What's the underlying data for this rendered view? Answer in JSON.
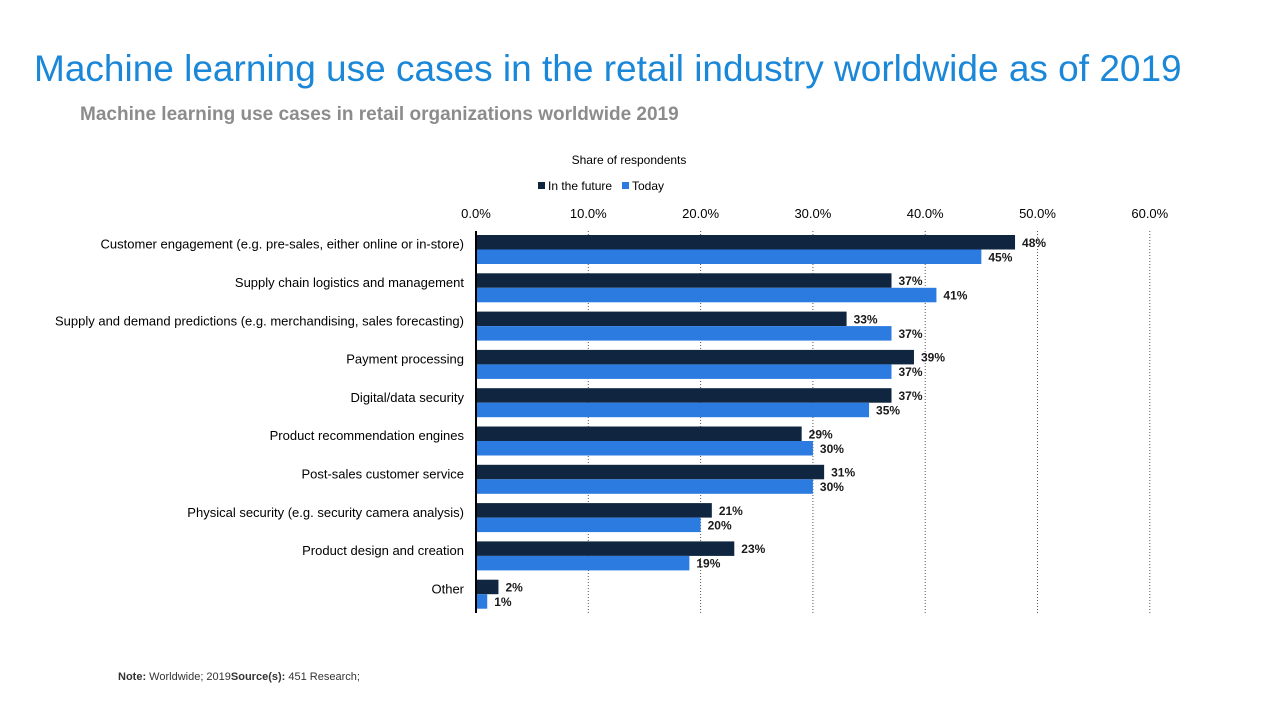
{
  "title": "Machine learning use cases in the retail industry worldwide as of 2019",
  "subtitle": "Machine learning use cases in retail organizations worldwide 2019",
  "footer": {
    "note_label": "Note:",
    "note_text": "Worldwide; 2019",
    "source_label": "Source(s):",
    "source_text": "451 Research;"
  },
  "colors": {
    "title": "#1a87d8",
    "future": "#0f2540",
    "today": "#2b7be0"
  },
  "chart_data": {
    "type": "bar",
    "orientation": "horizontal",
    "axis_title": "Share of respondents",
    "xlim": [
      0,
      60
    ],
    "xticks": [
      0,
      10,
      20,
      30,
      40,
      50,
      60
    ],
    "xtick_labels": [
      "0.0%",
      "10.0%",
      "20.0%",
      "30.0%",
      "40.0%",
      "50.0%",
      "60.0%"
    ],
    "grid": "vertical dotted",
    "legend_position": "top",
    "categories": [
      "Customer engagement (e.g. pre-sales, either online or in-store)",
      "Supply chain logistics and management",
      "Supply and demand predictions (e.g. merchandising, sales forecasting)",
      "Payment processing",
      "Digital/data security",
      "Product recommendation engines",
      "Post-sales customer service",
      "Physical security (e.g. security camera analysis)",
      "Product design and creation",
      "Other"
    ],
    "series": [
      {
        "name": "In the future",
        "color": "#0f2540",
        "values": [
          48,
          37,
          33,
          39,
          37,
          29,
          31,
          21,
          23,
          2
        ]
      },
      {
        "name": "Today",
        "color": "#2b7be0",
        "values": [
          45,
          41,
          37,
          37,
          35,
          30,
          30,
          20,
          19,
          1
        ]
      }
    ],
    "value_suffix": "%"
  }
}
